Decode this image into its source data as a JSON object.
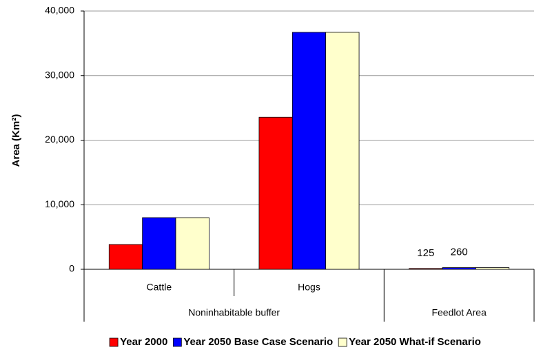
{
  "chart_data": {
    "type": "bar",
    "y_label": "Area (Km²)",
    "categories": [
      "Cattle",
      "Hogs",
      null
    ],
    "groups": [
      {
        "label": "Noninhabitable buffer",
        "span": 2
      },
      {
        "label": "Feedlot Area",
        "span": 1
      }
    ],
    "series": [
      {
        "name": "Year 2000",
        "color": "#ff0000",
        "values": [
          3840,
          23550,
          125
        ],
        "labels_shown": [
          false,
          false,
          true
        ]
      },
      {
        "name": "Year 2050 Base Case Scenario",
        "color": "#0000ff",
        "values": [
          8000,
          36700,
          260
        ],
        "labels_shown": [
          false,
          false,
          true
        ]
      },
      {
        "name": "Year 2050 What-if Scenario",
        "color": "#ffffcc",
        "values": [
          8000,
          36700,
          260
        ]
      }
    ],
    "ylim": [
      0,
      40000
    ],
    "yticks": [
      0,
      {
        "value": 10000,
        "label": "10,000"
      },
      {
        "value": 20000,
        "label": "20,000"
      },
      {
        "value": 30000,
        "label": "30,000"
      },
      {
        "value": 40000,
        "label": "40,000"
      }
    ],
    "grid": true,
    "legend": "bottom"
  }
}
